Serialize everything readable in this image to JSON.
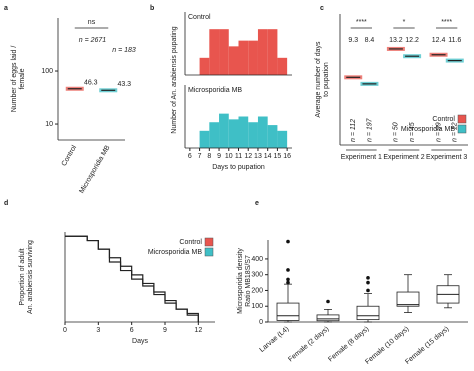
{
  "chart_data": [
    {
      "panel": "a",
      "type": "strip",
      "categories": [
        "Control",
        "Microsporidia MB"
      ],
      "values": [
        46.3,
        43.3
      ],
      "colors": [
        "#e8554e",
        "#3fbfc6"
      ],
      "n_labels": [
        "n = 2671",
        "n = 183"
      ],
      "significance": "ns",
      "ylabel": [
        "Number of eggs laid /",
        "female"
      ],
      "log_scale": true,
      "ylim": [
        5,
        1000
      ],
      "yticks": [
        10,
        100
      ]
    },
    {
      "panel": "b",
      "type": "histogram",
      "bins": [
        7,
        8,
        9,
        10,
        11,
        12,
        13,
        14,
        15,
        16
      ],
      "series": [
        {
          "name": "Control",
          "color": "#e8554e",
          "values": [
            3,
            8,
            8,
            5,
            6,
            6,
            8,
            8,
            3
          ]
        },
        {
          "name": "Microsporidia MB",
          "color": "#3fbfc6",
          "values": [
            3,
            4.5,
            6,
            5,
            5.5,
            4.5,
            5.5,
            4,
            3
          ]
        }
      ],
      "xlabel": "Days to pupation",
      "ylabel": [
        "Number of An. arabiensis pupating"
      ],
      "xlim": [
        5.5,
        16.5
      ],
      "xticks": [
        6,
        7,
        8,
        9,
        10,
        11,
        12,
        13,
        14,
        15,
        16
      ],
      "ylim": [
        0,
        11
      ]
    },
    {
      "panel": "c",
      "type": "strip",
      "categories": [
        "Experiment 1",
        "Experiment 2",
        "Experiment 3"
      ],
      "series": [
        {
          "name": "Control",
          "color": "#e8554e",
          "values": [
            9.3,
            13.2,
            12.4
          ],
          "n_labels": [
            "n = 112",
            "n = 50",
            "n = 99"
          ]
        },
        {
          "name": "Microsporidia MB",
          "color": "#3fbfc6",
          "values": [
            8.4,
            12.2,
            11.6
          ],
          "n_labels": [
            "n = 197",
            "n = 45",
            "n = 12"
          ]
        }
      ],
      "significance": [
        "****",
        "*",
        "****"
      ],
      "ylabel": [
        "Average number of days",
        "to pupation"
      ],
      "ylim": [
        0,
        18
      ],
      "legend": "lower right"
    },
    {
      "panel": "d",
      "type": "line",
      "step": true,
      "x": [
        0,
        1,
        2,
        3,
        4,
        5,
        6,
        7,
        8,
        9,
        10,
        11,
        12
      ],
      "series": [
        {
          "name": "Control",
          "color": "#e8554e",
          "values": [
            1,
            1,
            0.95,
            0.85,
            0.75,
            0.65,
            0.55,
            0.45,
            0.35,
            0.25,
            0.15,
            0.1,
            0
          ]
        },
        {
          "name": "Microsporidia MB",
          "color": "#3fbfc6",
          "values": [
            1,
            1,
            0.95,
            0.85,
            0.7,
            0.6,
            0.5,
            0.42,
            0.32,
            0.22,
            0.15,
            0.08,
            0
          ]
        }
      ],
      "xlabel": "Days",
      "ylabel": [
        "Proportion of adult",
        "An. arabiensis surviving"
      ],
      "xlim": [
        0,
        13.5
      ],
      "xticks": [
        0,
        3,
        6,
        9,
        12
      ],
      "ylim": [
        0,
        1.05
      ],
      "legend": "upper right"
    },
    {
      "panel": "e",
      "type": "box",
      "categories": [
        "Larvae (L4)",
        "Female (2 days)",
        "Female (8 days)",
        "Female (10 days)",
        "Female (15 days)"
      ],
      "boxes": [
        {
          "whislo": 0,
          "q1": 10,
          "median": 40,
          "q3": 120,
          "whishi": 240,
          "fliers": [
            510,
            330,
            270,
            250
          ]
        },
        {
          "whislo": 0,
          "q1": 8,
          "median": 20,
          "q3": 45,
          "whishi": 80,
          "fliers": [
            130
          ]
        },
        {
          "whislo": 0,
          "q1": 15,
          "median": 40,
          "q3": 100,
          "whishi": 180,
          "fliers": [
            280,
            250,
            200
          ]
        },
        {
          "whislo": 60,
          "q1": 100,
          "median": 110,
          "q3": 190,
          "whishi": 300,
          "fliers": []
        },
        {
          "whislo": 90,
          "q1": 120,
          "median": 175,
          "q3": 230,
          "whishi": 300,
          "fliers": []
        }
      ],
      "ylabel": [
        "Microsporidia density",
        "Ratio MB18S/S7"
      ],
      "ylim": [
        0,
        520
      ],
      "yticks": [
        0,
        100,
        200,
        300,
        400
      ]
    }
  ]
}
